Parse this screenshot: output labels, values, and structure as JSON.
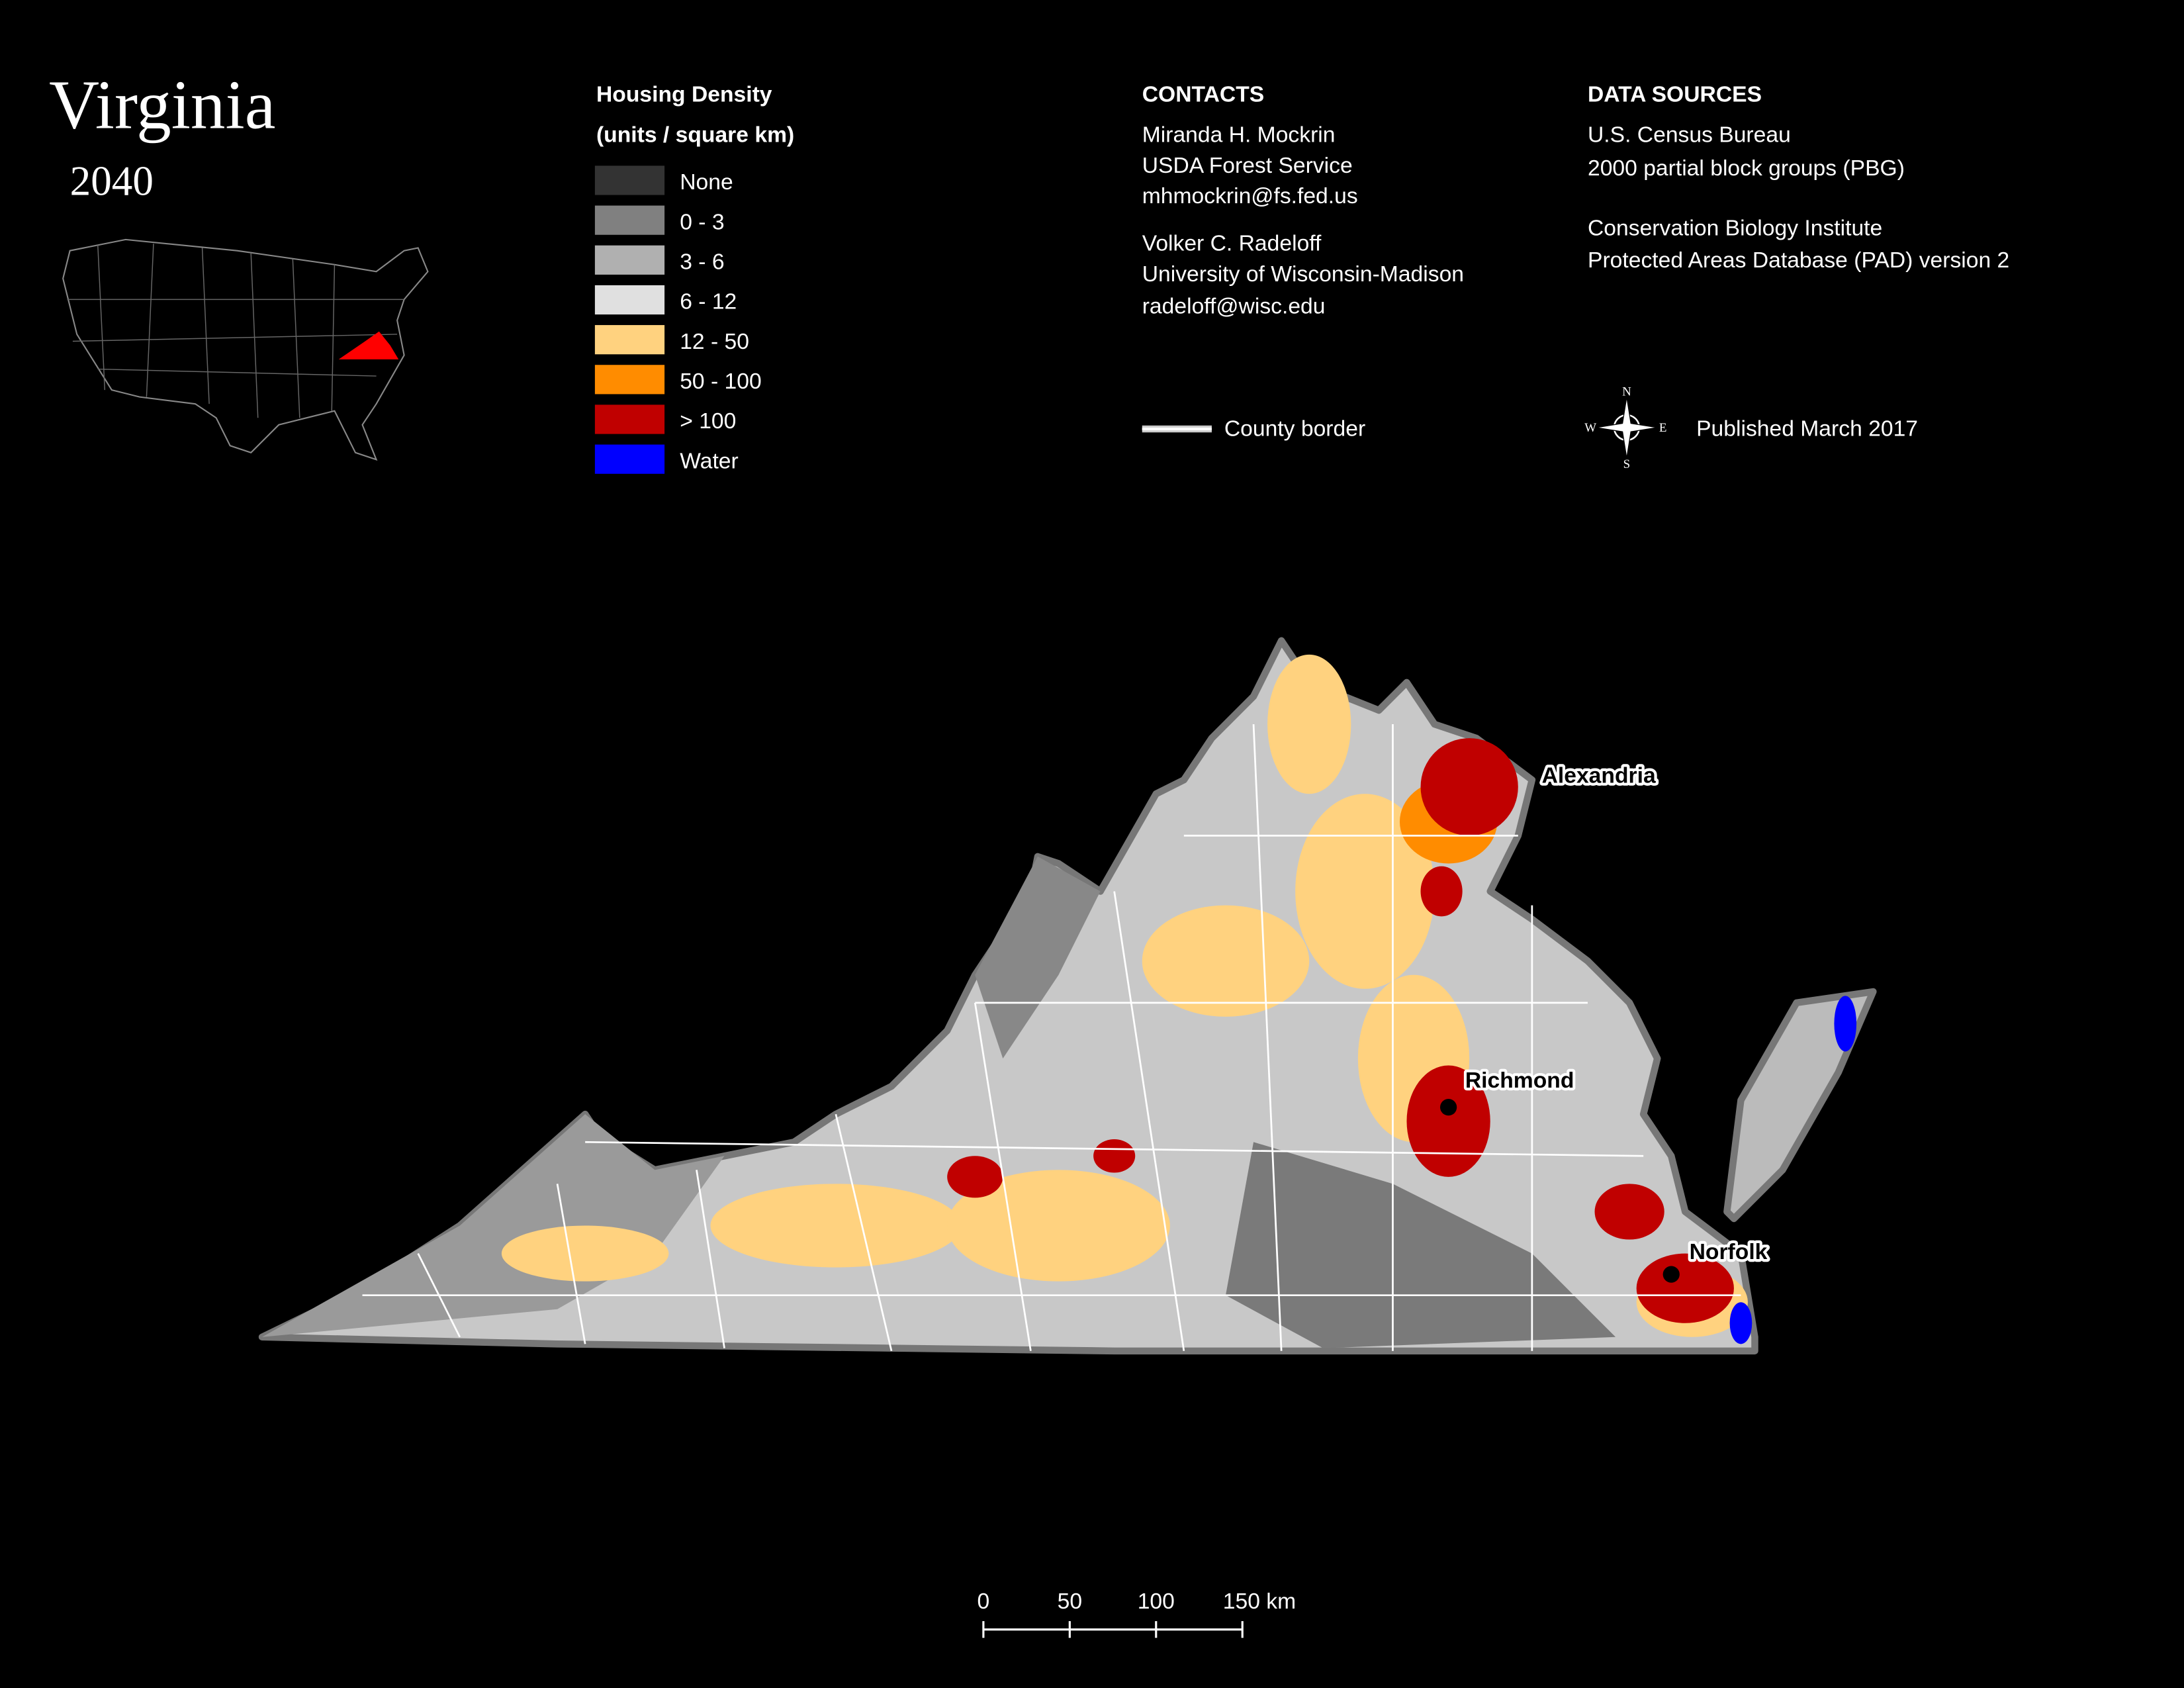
{
  "title": "Virginia",
  "subtitle": "2040",
  "legend": {
    "title": [
      "Housing Density",
      "(units / square km)"
    ],
    "items": [
      {
        "label": "None",
        "color": "#333333"
      },
      {
        "label": "0 - 3",
        "color": "#808080"
      },
      {
        "label": "3 - 6",
        "color": "#b0b0b0"
      },
      {
        "label": "6 - 12",
        "color": "#e0e0e0"
      },
      {
        "label": "12 - 50",
        "color": "#ffd27f"
      },
      {
        "label": "50 - 100",
        "color": "#ff8c00"
      },
      {
        "label": "> 100",
        "color": "#c00000"
      },
      {
        "label": "Water",
        "color": "#0000ff"
      }
    ]
  },
  "contacts": {
    "heading": "CONTACTS",
    "people": [
      [
        "Miranda H. Mockrin",
        "USDA Forest Service",
        "mhmockrin@fs.fed.us"
      ],
      [
        "Volker C. Radeloff",
        "University of Wisconsin-Madison",
        "radeloff@wisc.edu"
      ]
    ]
  },
  "data_sources": {
    "heading": "DATA SOURCES",
    "entries": [
      [
        "U.S. Census Bureau",
        "2000 partial block groups (PBG)"
      ],
      [
        "Conservation Biology Institute",
        "Protected Areas Database (PAD) version 2"
      ]
    ]
  },
  "county_border": "County border",
  "published": "Published March 2017",
  "compass": [
    "N",
    "E",
    "S",
    "W"
  ],
  "cities": [
    "Alexandria",
    "Richmond",
    "Norfolk"
  ],
  "scale_bar": [
    "0",
    "50",
    "100",
    "150 km"
  ]
}
